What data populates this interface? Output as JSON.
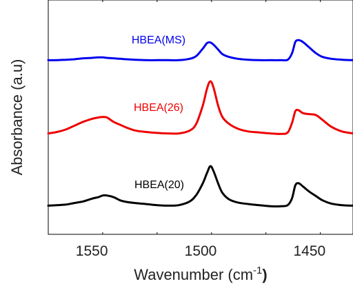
{
  "chart_data": {
    "type": "line",
    "xlabel": "Wavenumber (cm",
    "xlabel_sup": "-1",
    "xlabel_close": ")",
    "ylabel": "Absorbance (a.u)",
    "xlim": [
      1570,
      1430
    ],
    "x_reversed": true,
    "xticks": [
      1550,
      1500,
      1450
    ],
    "xtick_labels": [
      "1550",
      "1500",
      "1450"
    ],
    "y_ticks_shown": false,
    "grid": false,
    "legend": "inline labels above each curve",
    "series": [
      {
        "name": "HBEA(20)",
        "color": "#000000",
        "offset": 0,
        "points": [
          [
            1570,
            1.0
          ],
          [
            1566,
            1.5
          ],
          [
            1562,
            2.0
          ],
          [
            1558,
            3.5
          ],
          [
            1554,
            5.0
          ],
          [
            1550,
            7.5
          ],
          [
            1547,
            9.0
          ],
          [
            1545,
            10.5
          ],
          [
            1543,
            10.5
          ],
          [
            1540,
            9.0
          ],
          [
            1537,
            6.0
          ],
          [
            1534,
            4.5
          ],
          [
            1530,
            3.5
          ],
          [
            1525,
            2.5
          ],
          [
            1520,
            1.5
          ],
          [
            1515,
            1.0
          ],
          [
            1510,
            1.5
          ],
          [
            1505,
            5.0
          ],
          [
            1502,
            11.0
          ],
          [
            1499,
            22.0
          ],
          [
            1497,
            32.0
          ],
          [
            1495.5,
            38.0
          ],
          [
            1494,
            33.0
          ],
          [
            1492,
            22.0
          ],
          [
            1490,
            13.0
          ],
          [
            1487,
            7.0
          ],
          [
            1483,
            4.0
          ],
          [
            1478,
            2.5
          ],
          [
            1473,
            1.5
          ],
          [
            1468,
            0.5
          ],
          [
            1463,
            0.5
          ],
          [
            1460,
            1.5
          ],
          [
            1458,
            8.0
          ],
          [
            1456.5,
            20.0
          ],
          [
            1455,
            22.0
          ],
          [
            1453,
            19.0
          ],
          [
            1450,
            14.0
          ],
          [
            1447,
            10.0
          ],
          [
            1444,
            6.0
          ],
          [
            1440,
            3.0
          ],
          [
            1435,
            1.5
          ],
          [
            1430,
            1.0
          ]
        ]
      },
      {
        "name": "HBEA(26)",
        "color": "#ee0000",
        "offset": 0,
        "points": [
          [
            1570,
            1.0
          ],
          [
            1566,
            2.5
          ],
          [
            1562,
            5.0
          ],
          [
            1558,
            9.0
          ],
          [
            1554,
            13.0
          ],
          [
            1550,
            16.0
          ],
          [
            1547,
            17.5
          ],
          [
            1545,
            18.0
          ],
          [
            1543,
            17.5
          ],
          [
            1540,
            13.0
          ],
          [
            1537,
            10.0
          ],
          [
            1534,
            7.0
          ],
          [
            1530,
            4.0
          ],
          [
            1525,
            2.5
          ],
          [
            1520,
            1.5
          ],
          [
            1515,
            1.0
          ],
          [
            1510,
            1.0
          ],
          [
            1505,
            4.0
          ],
          [
            1502,
            11.0
          ],
          [
            1499,
            30.0
          ],
          [
            1497,
            48.0
          ],
          [
            1495.5,
            55.0
          ],
          [
            1494,
            48.0
          ],
          [
            1492,
            30.0
          ],
          [
            1490,
            18.0
          ],
          [
            1487,
            11.0
          ],
          [
            1483,
            6.0
          ],
          [
            1478,
            3.0
          ],
          [
            1473,
            2.0
          ],
          [
            1468,
            1.0
          ],
          [
            1463,
            0.5
          ],
          [
            1460,
            2.0
          ],
          [
            1458,
            12.0
          ],
          [
            1456.5,
            24.0
          ],
          [
            1455,
            25.0
          ],
          [
            1453,
            22.0
          ],
          [
            1450,
            21.0
          ],
          [
            1447,
            20.0
          ],
          [
            1444,
            15.0
          ],
          [
            1440,
            8.0
          ],
          [
            1435,
            3.0
          ],
          [
            1430,
            1.0
          ]
        ]
      },
      {
        "name": "HBEA(MS)",
        "color": "#0000ee",
        "offset": 0,
        "points": [
          [
            1570,
            0.5
          ],
          [
            1566,
            0.5
          ],
          [
            1562,
            1.0
          ],
          [
            1558,
            1.5
          ],
          [
            1554,
            2.5
          ],
          [
            1550,
            3.0
          ],
          [
            1547,
            3.5
          ],
          [
            1545,
            3.5
          ],
          [
            1543,
            3.0
          ],
          [
            1540,
            2.5
          ],
          [
            1537,
            2.0
          ],
          [
            1534,
            1.5
          ],
          [
            1530,
            1.0
          ],
          [
            1525,
            0.5
          ],
          [
            1520,
            0.5
          ],
          [
            1515,
            0.5
          ],
          [
            1510,
            0.5
          ],
          [
            1505,
            2.0
          ],
          [
            1502,
            5.0
          ],
          [
            1499,
            13.0
          ],
          [
            1497,
            19.0
          ],
          [
            1495.5,
            19.5
          ],
          [
            1494,
            17.0
          ],
          [
            1492,
            12.0
          ],
          [
            1490,
            7.0
          ],
          [
            1487,
            4.0
          ],
          [
            1483,
            2.0
          ],
          [
            1478,
            1.0
          ],
          [
            1473,
            0.5
          ],
          [
            1468,
            0.5
          ],
          [
            1463,
            0.5
          ],
          [
            1460,
            1.0
          ],
          [
            1458,
            8.0
          ],
          [
            1456.5,
            20.0
          ],
          [
            1455,
            22.0
          ],
          [
            1453,
            20.0
          ],
          [
            1450,
            14.0
          ],
          [
            1447,
            8.0
          ],
          [
            1444,
            4.0
          ],
          [
            1440,
            2.0
          ],
          [
            1435,
            1.0
          ],
          [
            1430,
            0.5
          ]
        ]
      }
    ]
  }
}
